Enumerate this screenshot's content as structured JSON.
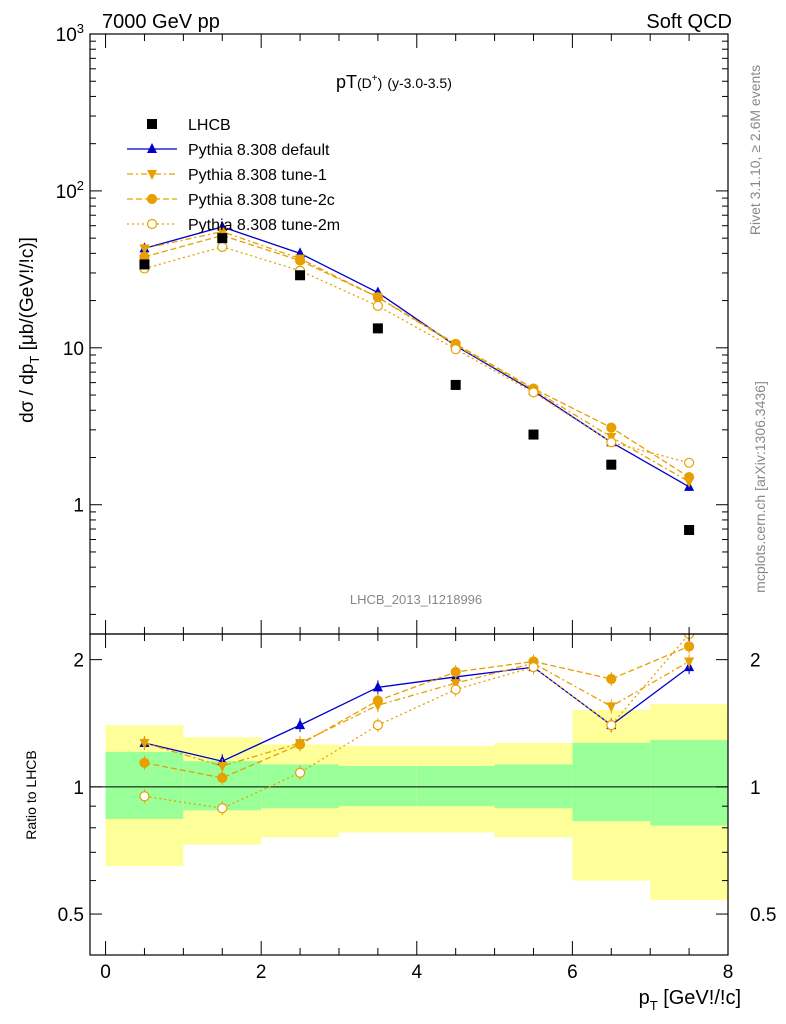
{
  "header": {
    "left": "7000 GeV pp",
    "right": "Soft QCD"
  },
  "side_text": {
    "rivet": "Rivet 3.1.10, ≥ 2.6M events",
    "mcplots": "mcplots.cern.ch [arXiv:1306.3436]"
  },
  "analysis_id": "LHCB_2013_I1218996",
  "colors": {
    "lhcb": "#000000",
    "default": "#0000cc",
    "tunes": "#e8a000",
    "band_inner": "#99ff99",
    "band_outer": "#ffff99"
  },
  "chart_data": [
    {
      "type": "scatter",
      "title": "pT(D+) (y-3.0-3.5)",
      "title_main": "pT",
      "title_paren": "(D",
      "title_sup": "+",
      "title_close": ")",
      "title_range": "(y-3.0-3.5)",
      "ylabel": "dσ / dp_T [μb/(GeV!/!c)]",
      "ylabel_parts": {
        "a": "dσ / dp",
        "sub": "T",
        "b": " [μb/(GeV!/!c)]"
      },
      "yscale": "log",
      "ylim": [
        0.15,
        1000
      ],
      "xlim": [
        -0.2,
        8.0
      ],
      "yticks": [
        {
          "v": 1,
          "label": "1"
        },
        {
          "v": 10,
          "label": "10"
        },
        {
          "v": 100,
          "label": "10",
          "sup": "2"
        },
        {
          "v": 1000,
          "label": "10",
          "sup": "3"
        }
      ],
      "legend_position": "top-left",
      "x": [
        0.5,
        1.5,
        2.5,
        3.5,
        4.5,
        5.5,
        6.5,
        7.5
      ],
      "series": [
        {
          "name": "LHCB",
          "marker": "filled-square",
          "values": [
            34,
            50,
            29,
            13.3,
            5.8,
            2.8,
            1.8,
            0.69
          ]
        },
        {
          "name": "Pythia 8.308 default",
          "marker": "filled-triangle",
          "values": [
            43,
            59,
            40,
            22.5,
            10.3,
            5.3,
            2.5,
            1.3
          ]
        },
        {
          "name": "Pythia 8.308 tune-1",
          "marker": "filled-down-triangle",
          "values": [
            43,
            55,
            37,
            21,
            10.4,
            5.4,
            2.7,
            1.4
          ]
        },
        {
          "name": "Pythia 8.308 tune-2c",
          "marker": "filled-circle",
          "values": [
            38,
            52,
            36,
            21,
            10.6,
            5.5,
            3.1,
            1.5
          ]
        },
        {
          "name": "Pythia 8.308 tune-2m",
          "marker": "open-circle",
          "values": [
            32,
            44,
            31,
            18.5,
            9.8,
            5.2,
            2.5,
            1.85
          ]
        }
      ]
    },
    {
      "type": "scatter",
      "title": "",
      "xlabel": "p_T [GeV!/!c]",
      "xlabel_parts": {
        "a": "p",
        "sub": "T",
        "b": " [GeV!/!c]"
      },
      "ylabel": "Ratio to LHCB",
      "yscale": "log",
      "ylim": [
        0.4,
        2.3
      ],
      "xlim": [
        -0.2,
        8.0
      ],
      "xticks": [
        0,
        2,
        4,
        6,
        8
      ],
      "yticks": [
        {
          "v": 0.5,
          "label": "0.5"
        },
        {
          "v": 1,
          "label": "1"
        },
        {
          "v": 2,
          "label": "2"
        }
      ],
      "bins": [
        [
          0,
          1
        ],
        [
          1,
          2
        ],
        [
          2,
          3
        ],
        [
          3,
          4
        ],
        [
          4,
          5
        ],
        [
          5,
          6
        ],
        [
          6,
          7
        ],
        [
          7,
          8
        ]
      ],
      "band_inner": [
        [
          0.84,
          1.21
        ],
        [
          0.88,
          1.15
        ],
        [
          0.89,
          1.13
        ],
        [
          0.9,
          1.12
        ],
        [
          0.9,
          1.12
        ],
        [
          0.89,
          1.13
        ],
        [
          0.83,
          1.27
        ],
        [
          0.81,
          1.29
        ]
      ],
      "band_outer": [
        [
          0.65,
          1.4
        ],
        [
          0.73,
          1.31
        ],
        [
          0.76,
          1.26
        ],
        [
          0.78,
          1.25
        ],
        [
          0.78,
          1.25
        ],
        [
          0.76,
          1.27
        ],
        [
          0.6,
          1.52
        ],
        [
          0.54,
          1.57
        ]
      ],
      "x": [
        0.5,
        1.5,
        2.5,
        3.5,
        4.5,
        5.5,
        6.5,
        7.5
      ],
      "series": [
        {
          "name": "Pythia 8.308 default",
          "values": [
            1.27,
            1.15,
            1.4,
            1.72,
            1.82,
            1.92,
            1.4,
            1.92
          ]
        },
        {
          "name": "Pythia 8.308 tune-1",
          "values": [
            1.27,
            1.12,
            1.27,
            1.56,
            1.76,
            1.96,
            1.55,
            1.98
          ]
        },
        {
          "name": "Pythia 8.308 tune-2c",
          "values": [
            1.14,
            1.05,
            1.26,
            1.6,
            1.87,
            1.98,
            1.8,
            2.15
          ]
        },
        {
          "name": "Pythia 8.308 tune-2m",
          "values": [
            0.95,
            0.89,
            1.08,
            1.4,
            1.7,
            1.92,
            1.4,
            2.3
          ]
        }
      ]
    }
  ]
}
